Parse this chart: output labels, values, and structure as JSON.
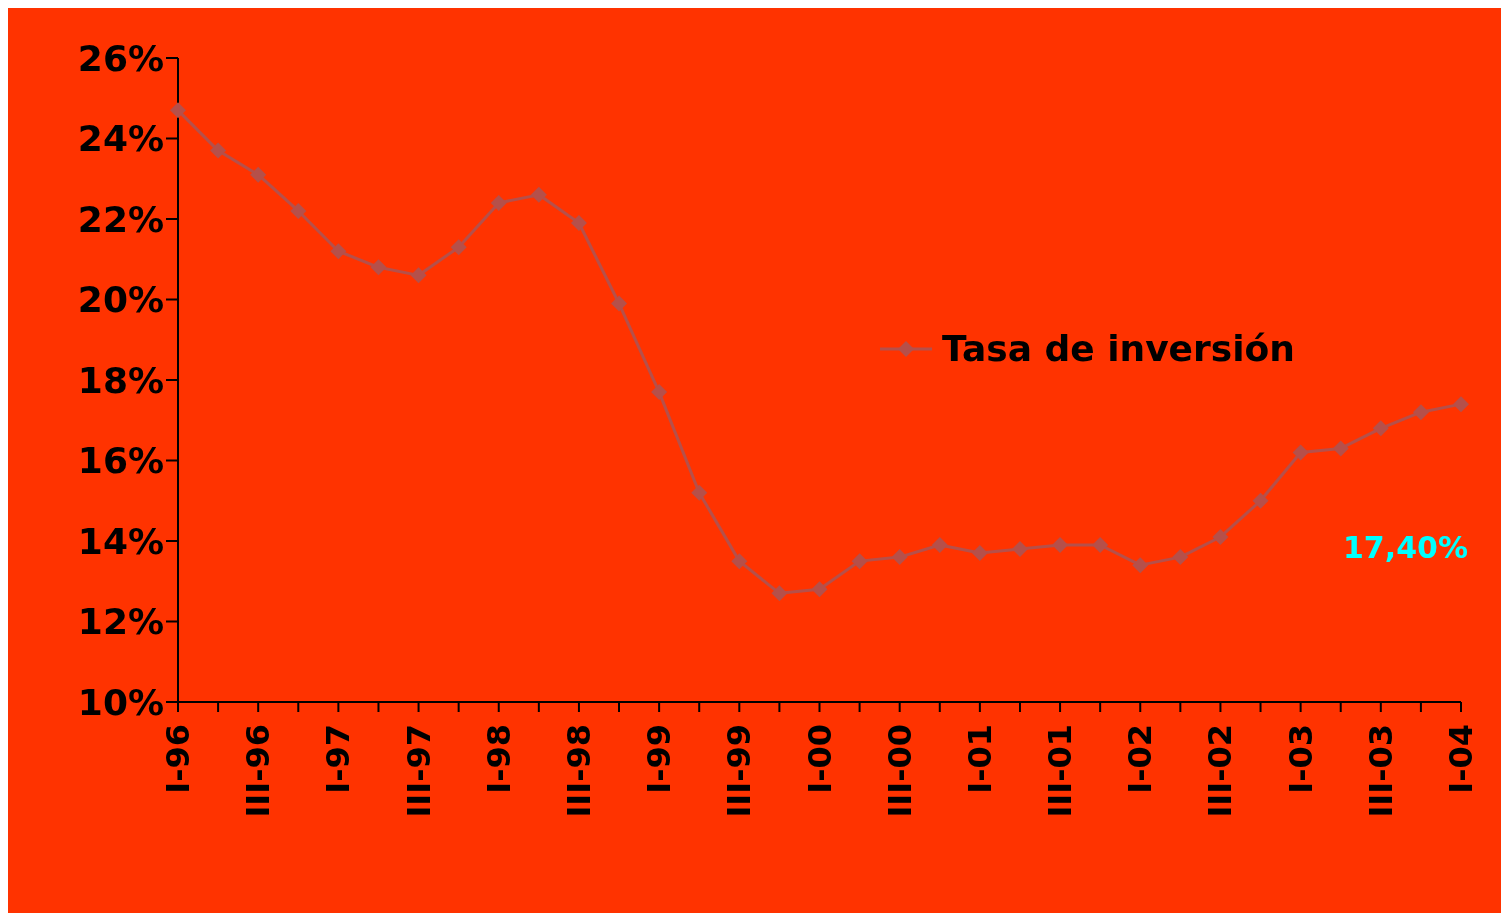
{
  "chart_data": {
    "type": "line",
    "categories": [
      "I-96",
      null,
      "III-96",
      null,
      "I-97",
      null,
      "III-97",
      null,
      "I-98",
      null,
      "III-98",
      null,
      "I-99",
      null,
      "III-99",
      null,
      "I-00",
      null,
      "III-00",
      null,
      "I-01",
      null,
      "III-01",
      null,
      "I-02",
      null,
      "III-02",
      null,
      "I-03",
      null,
      "III-03",
      null,
      "I-04"
    ],
    "series": [
      {
        "name": "Tasa de inversión",
        "color": "#b5504a",
        "values": [
          24.7,
          23.7,
          23.1,
          22.2,
          21.2,
          20.8,
          20.6,
          21.3,
          22.4,
          22.6,
          21.9,
          19.9,
          17.7,
          15.2,
          13.5,
          12.7,
          12.8,
          13.5,
          13.6,
          13.9,
          13.7,
          13.8,
          13.9,
          13.9,
          13.4,
          13.6,
          14.1,
          15.0,
          16.2,
          16.3,
          16.8,
          17.2,
          17.4
        ]
      }
    ],
    "ylim": [
      10,
      26
    ],
    "yticks": [
      {
        "value": 10,
        "label": "10%"
      },
      {
        "value": 12,
        "label": "12%"
      },
      {
        "value": 14,
        "label": "14%"
      },
      {
        "value": 16,
        "label": "16%"
      },
      {
        "value": 18,
        "label": "18%"
      },
      {
        "value": 20,
        "label": "20%"
      },
      {
        "value": 22,
        "label": "22%"
      },
      {
        "value": 24,
        "label": "24%"
      },
      {
        "value": 26,
        "label": "26%"
      }
    ],
    "annotations": [
      "17,40%"
    ],
    "grid": false,
    "legend": "right",
    "marker": "diamond",
    "line_style": "solid"
  }
}
